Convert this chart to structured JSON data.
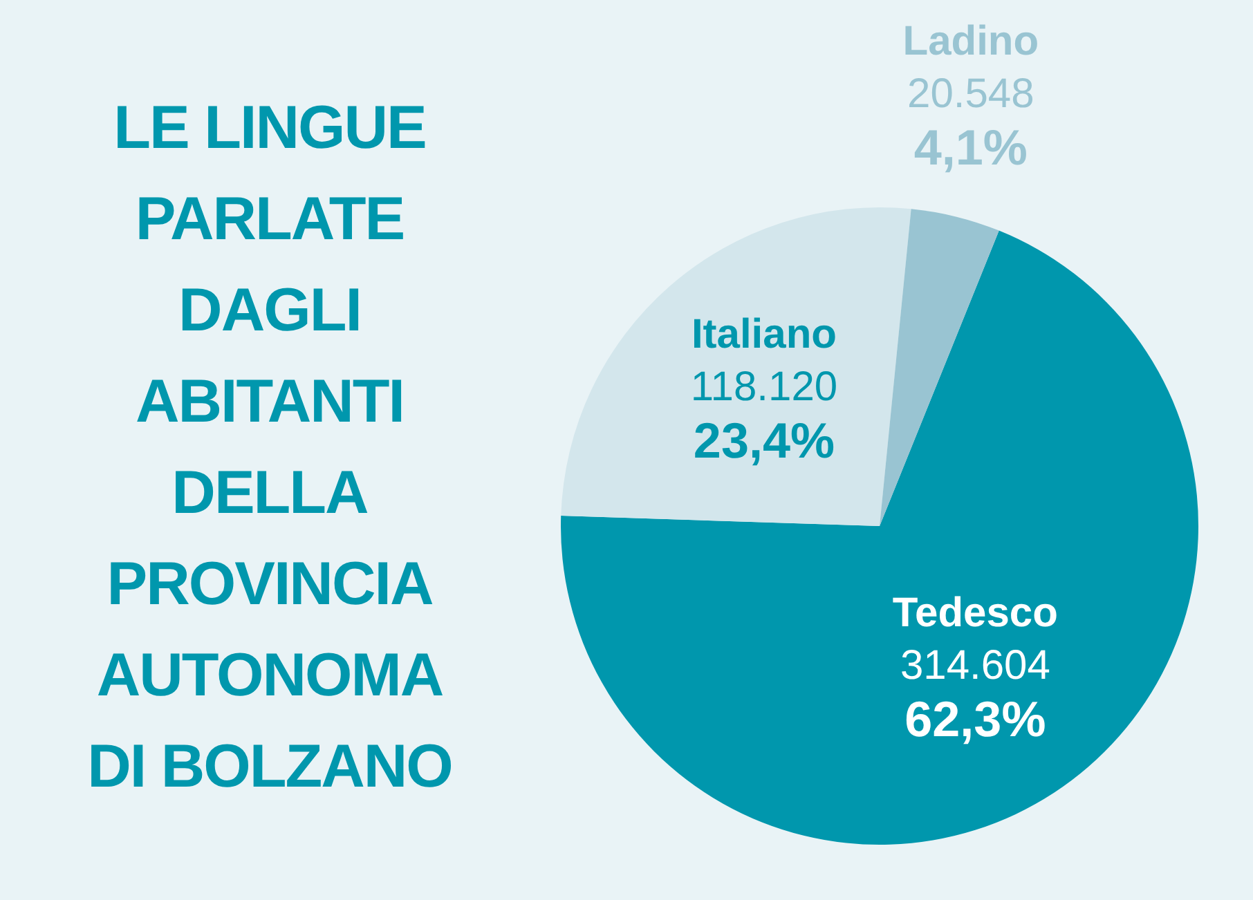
{
  "chart_data": {
    "type": "pie",
    "title": "LE LINGUE PARLATE DAGLI ABITANTI DELLA PROVINCIA AUTONOMA DI BOLZANO",
    "categories": [
      "Tedesco",
      "Italiano",
      "Ladino"
    ],
    "values": [
      314604,
      118120,
      20548
    ],
    "colors": [
      "#0097ad",
      "#d3e6ec",
      "#99c4d2"
    ],
    "value_labels": [
      "314.604",
      "118.120",
      "20.548"
    ],
    "annotations": [
      "62,3%",
      "23,4%",
      "4,1%"
    ],
    "legend": false
  }
}
